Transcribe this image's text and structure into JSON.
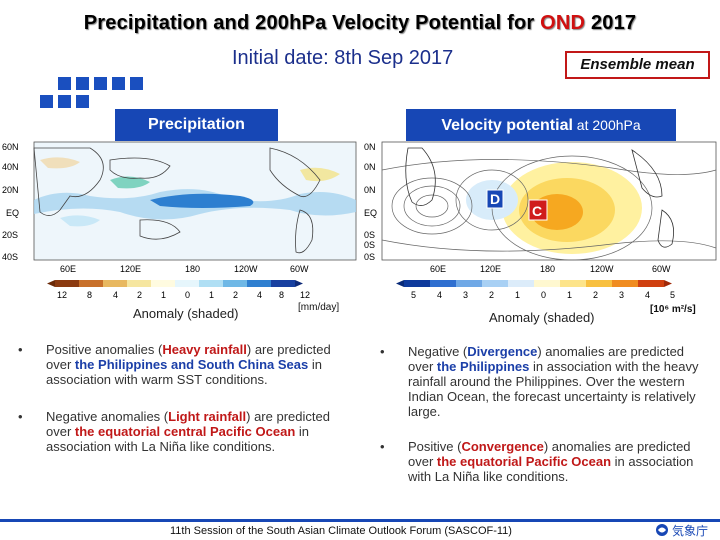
{
  "title": {
    "pre": "Precipitation and 200hPa Velocity Potential for ",
    "highlight": "OND",
    "post": " 2017"
  },
  "subtitle": "Initial date: 8th Sep 2017",
  "ensemble": "Ensemble mean",
  "left_panel": {
    "label": "Precipitation",
    "lat_labels": [
      "60N",
      "40N",
      "20N",
      "EQ",
      "20S",
      "40S"
    ],
    "lon_labels": [
      "60E",
      "120E",
      "180",
      "120W",
      "60W"
    ],
    "cbar_labels": [
      "12",
      "8",
      "4",
      "2",
      "1",
      "0",
      "1",
      "2",
      "4",
      "8",
      "12"
    ],
    "anomaly": "Anomaly (shaded)",
    "unit": "[mm/day]"
  },
  "right_panel": {
    "label_bold": "Velocity potential",
    "label_rest": " at 200hPa",
    "lat_labels": [
      "0N",
      "0N",
      "0N",
      "EQ",
      "0S",
      "0S",
      "0S"
    ],
    "lon_labels": [
      "60E",
      "120E",
      "180",
      "120W",
      "60W"
    ],
    "cbar_labels": [
      "5",
      "4",
      "3",
      "2",
      "1",
      "0",
      "1",
      "2",
      "3",
      "4",
      "5"
    ],
    "marker_d": "D",
    "marker_c": "C",
    "anomaly": "Anomaly (shaded)",
    "unit": "[10⁶ m²/s]"
  },
  "left_bullets": [
    {
      "parts": [
        "Positive anomalies (",
        "Heavy rainfall",
        ") are predicted over ",
        "the Philippines and South China Seas",
        " in association with warm SST conditions."
      ]
    },
    {
      "parts": [
        "Negative anomalies (",
        "Light rainfall",
        ") are predicted over ",
        "the equatorial central Pacific Ocean",
        " in association with La Niña like conditions."
      ]
    }
  ],
  "right_bullets": [
    {
      "parts": [
        "Negative (",
        "Divergence",
        ") anomalies are predicted over ",
        "the Philippines",
        " in association with the heavy rainfall around the Philippines. Over the western Indian Ocean, the forecast uncertainty is relatively large."
      ]
    },
    {
      "parts": [
        "Positive (",
        "Convergence",
        ") anomalies are predicted over ",
        "the equatorial Pacific Ocean",
        " in association with La Niña like conditions."
      ]
    }
  ],
  "bullet_symbol": "•",
  "footer": "11th Session of the South Asian Climate Outlook Forum (SASCOF-11)",
  "logo_text": "気象庁",
  "colors": {
    "accent": "#1747b5",
    "highlight": "#c01818"
  }
}
